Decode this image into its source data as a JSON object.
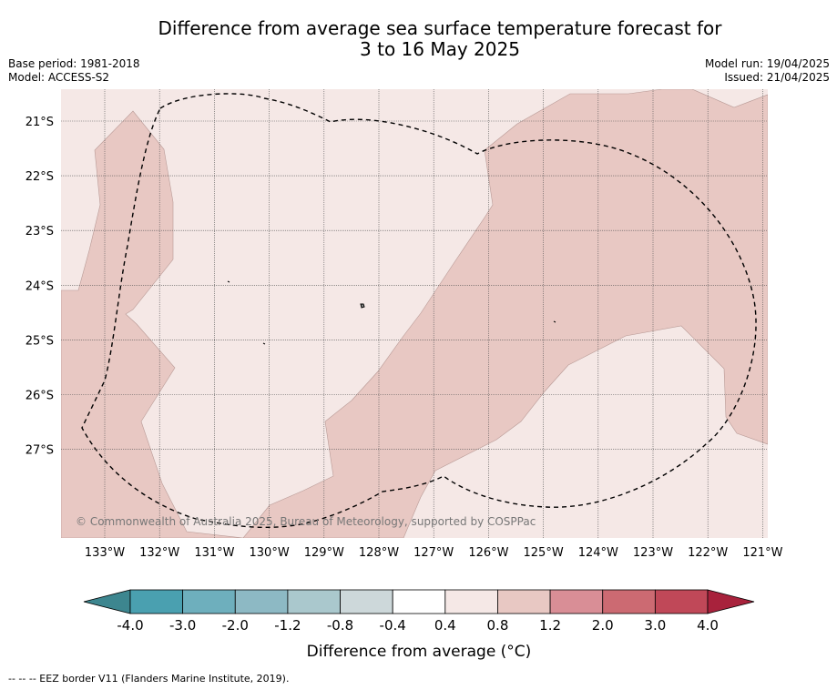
{
  "title_line1": "Difference from average sea surface temperature forecast for",
  "title_line2": "3 to 16 May 2025",
  "base_period": "Base period: 1981-2018",
  "model": "Model: ACCESS-S2",
  "model_run": "Model run: 19/04/2025",
  "issued": "Issued: 21/04/2025",
  "copyright": "© Commonwealth of Australia 2025, Bureau of Meteorology, supported by COSPPac",
  "lat_labels": [
    "21°S",
    "22°S",
    "23°S",
    "24°S",
    "25°S",
    "26°S",
    "27°S"
  ],
  "lon_labels": [
    "133°W",
    "132°W",
    "131°W",
    "130°W",
    "129°W",
    "128°W",
    "127°W",
    "126°W",
    "125°W",
    "124°W",
    "123°W",
    "122°W",
    "121°W"
  ],
  "colorbar": {
    "ticks": [
      "-4.0",
      "-3.0",
      "-2.0",
      "-1.2",
      "-0.8",
      "-0.4",
      "0.4",
      "0.8",
      "1.2",
      "2.0",
      "3.0",
      "4.0"
    ],
    "colors": [
      "#4aa0b0",
      "#6eafbd",
      "#8db9c4",
      "#aac8cd",
      "#cdd8da",
      "#ffffff",
      "#f5e8e6",
      "#e8c8c3",
      "#d98e96",
      "#cc6a72",
      "#c04858"
    ],
    "under_color": "#3d868f",
    "over_color": "#a8223c",
    "label": "Difference from average (°C)"
  },
  "map_colors": {
    "low": "#f5e8e6",
    "high": "#e8c8c3"
  },
  "eez_legend": "--  --  -- EEZ border V11 (Flanders Marine Institute, 2019)."
}
